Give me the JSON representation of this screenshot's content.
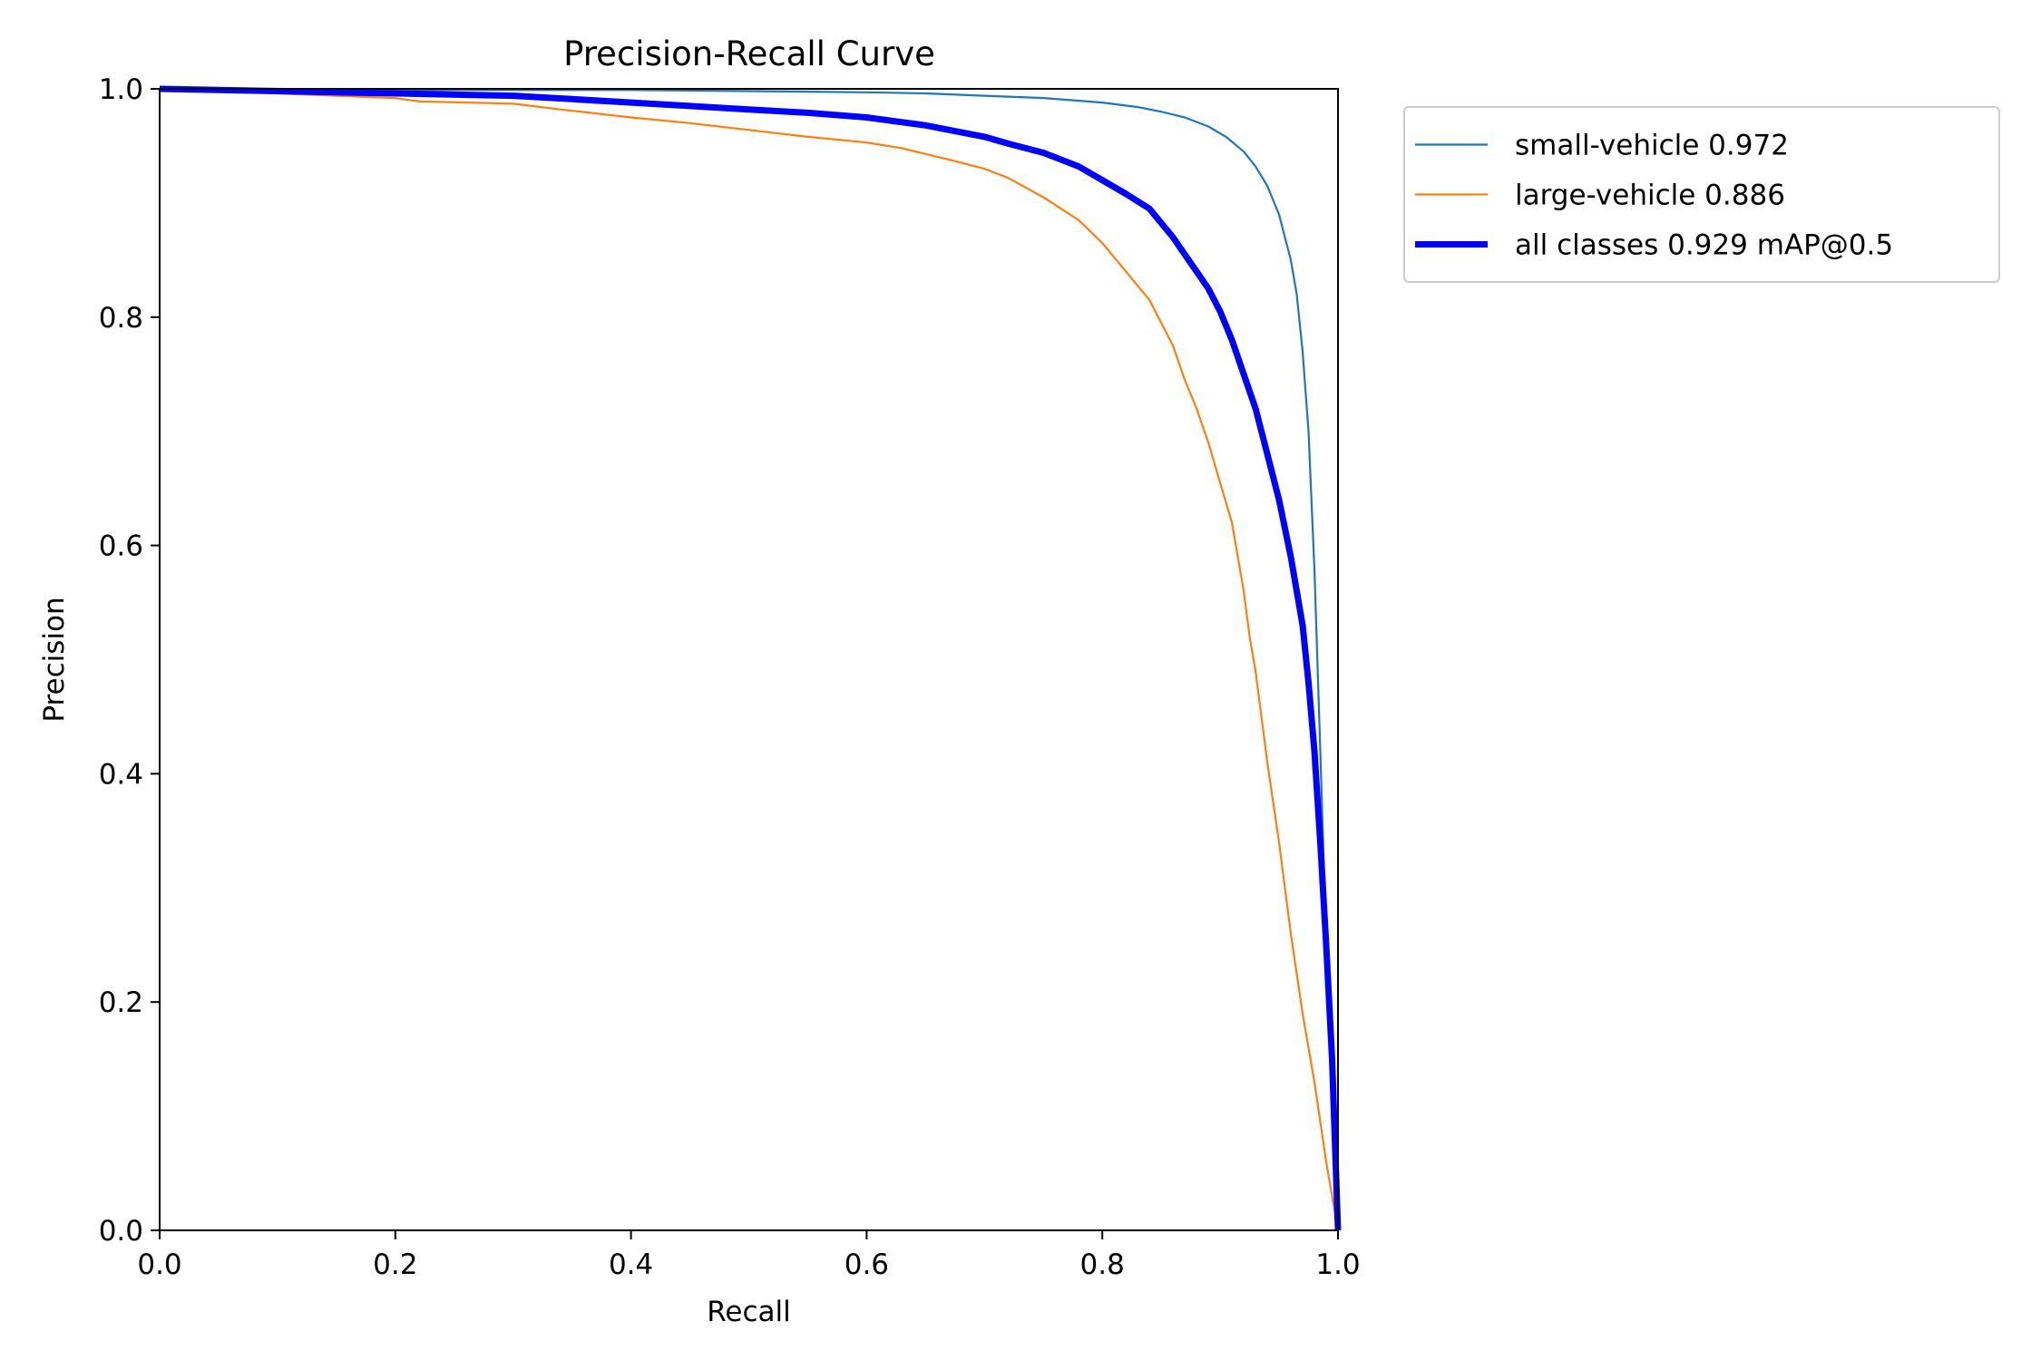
{
  "chart_data": {
    "type": "line",
    "title": "Precision-Recall Curve",
    "xlabel": "Recall",
    "ylabel": "Precision",
    "xlim": [
      0,
      1
    ],
    "ylim": [
      0,
      1
    ],
    "xticks": [
      "0.0",
      "0.2",
      "0.4",
      "0.6",
      "0.8",
      "1.0"
    ],
    "yticks": [
      "0.0",
      "0.2",
      "0.4",
      "0.6",
      "0.8",
      "1.0"
    ],
    "grid": false,
    "legend_position": "outside-top-right",
    "series": [
      {
        "name": "small-vehicle 0.972",
        "color": "#1f77b4",
        "linewidth": "thin",
        "points": [
          [
            0,
            1.0
          ],
          [
            0.1,
            1.0
          ],
          [
            0.2,
            0.999
          ],
          [
            0.3,
            0.999
          ],
          [
            0.4,
            0.999
          ],
          [
            0.5,
            0.998
          ],
          [
            0.6,
            0.997
          ],
          [
            0.65,
            0.996
          ],
          [
            0.7,
            0.994
          ],
          [
            0.75,
            0.992
          ],
          [
            0.8,
            0.988
          ],
          [
            0.83,
            0.984
          ],
          [
            0.85,
            0.98
          ],
          [
            0.87,
            0.975
          ],
          [
            0.89,
            0.967
          ],
          [
            0.905,
            0.958
          ],
          [
            0.92,
            0.945
          ],
          [
            0.93,
            0.932
          ],
          [
            0.94,
            0.915
          ],
          [
            0.95,
            0.89
          ],
          [
            0.96,
            0.85
          ],
          [
            0.965,
            0.82
          ],
          [
            0.97,
            0.77
          ],
          [
            0.975,
            0.7
          ],
          [
            0.98,
            0.58
          ],
          [
            0.985,
            0.42
          ],
          [
            0.99,
            0.25
          ],
          [
            0.995,
            0.1
          ],
          [
            1.0,
            0.0
          ]
        ]
      },
      {
        "name": "large-vehicle 0.886",
        "color": "#ff7f0e",
        "linewidth": "thin",
        "points": [
          [
            0,
            1.0
          ],
          [
            0.05,
            0.998
          ],
          [
            0.1,
            0.996
          ],
          [
            0.15,
            0.994
          ],
          [
            0.2,
            0.992
          ],
          [
            0.22,
            0.989
          ],
          [
            0.3,
            0.987
          ],
          [
            0.34,
            0.982
          ],
          [
            0.4,
            0.975
          ],
          [
            0.45,
            0.97
          ],
          [
            0.5,
            0.964
          ],
          [
            0.55,
            0.958
          ],
          [
            0.6,
            0.953
          ],
          [
            0.63,
            0.948
          ],
          [
            0.67,
            0.938
          ],
          [
            0.7,
            0.93
          ],
          [
            0.72,
            0.922
          ],
          [
            0.75,
            0.905
          ],
          [
            0.78,
            0.885
          ],
          [
            0.8,
            0.865
          ],
          [
            0.82,
            0.84
          ],
          [
            0.84,
            0.815
          ],
          [
            0.86,
            0.775
          ],
          [
            0.87,
            0.745
          ],
          [
            0.88,
            0.72
          ],
          [
            0.89,
            0.69
          ],
          [
            0.9,
            0.655
          ],
          [
            0.91,
            0.62
          ],
          [
            0.915,
            0.59
          ],
          [
            0.92,
            0.56
          ],
          [
            0.925,
            0.52
          ],
          [
            0.93,
            0.49
          ],
          [
            0.935,
            0.45
          ],
          [
            0.94,
            0.41
          ],
          [
            0.95,
            0.34
          ],
          [
            0.96,
            0.26
          ],
          [
            0.97,
            0.19
          ],
          [
            0.98,
            0.13
          ],
          [
            0.99,
            0.06
          ],
          [
            1.0,
            0.0
          ]
        ]
      },
      {
        "name": "all classes 0.929 mAP@0.5",
        "color": "#0000ff",
        "linewidth": "thick",
        "points": [
          [
            0,
            1.0
          ],
          [
            0.1,
            0.998
          ],
          [
            0.2,
            0.996
          ],
          [
            0.3,
            0.994
          ],
          [
            0.35,
            0.991
          ],
          [
            0.4,
            0.988
          ],
          [
            0.45,
            0.985
          ],
          [
            0.5,
            0.982
          ],
          [
            0.55,
            0.979
          ],
          [
            0.6,
            0.975
          ],
          [
            0.65,
            0.968
          ],
          [
            0.7,
            0.958
          ],
          [
            0.72,
            0.952
          ],
          [
            0.75,
            0.944
          ],
          [
            0.78,
            0.932
          ],
          [
            0.8,
            0.92
          ],
          [
            0.82,
            0.908
          ],
          [
            0.84,
            0.895
          ],
          [
            0.86,
            0.87
          ],
          [
            0.87,
            0.855
          ],
          [
            0.88,
            0.84
          ],
          [
            0.89,
            0.825
          ],
          [
            0.9,
            0.805
          ],
          [
            0.91,
            0.78
          ],
          [
            0.92,
            0.75
          ],
          [
            0.93,
            0.72
          ],
          [
            0.94,
            0.68
          ],
          [
            0.95,
            0.64
          ],
          [
            0.96,
            0.59
          ],
          [
            0.97,
            0.53
          ],
          [
            0.975,
            0.48
          ],
          [
            0.98,
            0.42
          ],
          [
            0.985,
            0.34
          ],
          [
            0.99,
            0.25
          ],
          [
            0.995,
            0.15
          ],
          [
            1.0,
            0.0
          ]
        ]
      }
    ]
  }
}
